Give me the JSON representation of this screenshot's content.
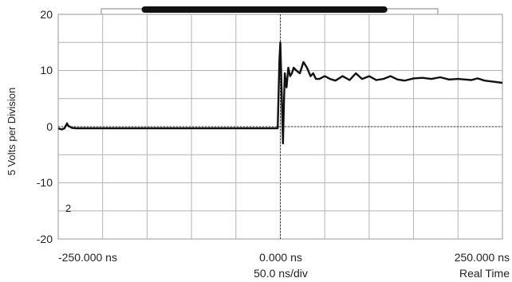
{
  "chart_data": {
    "type": "line",
    "ylabel": "5 Volts per Division",
    "x_ticks": [
      "-250.000 ns",
      "0.000 ns",
      "250.000 ns"
    ],
    "x_subtitles": {
      "center": "50.0 ns/div",
      "right": "Real Time"
    },
    "y_ticks": [
      "20",
      "10",
      "0",
      "-10",
      "-20"
    ],
    "xlim_ns": [
      -250,
      250
    ],
    "ylim_v": [
      -20,
      20
    ],
    "grid": true,
    "trigger_x_ns": 0,
    "channel_marker": "2",
    "series": [
      {
        "x_ns": [
          -250,
          -246,
          -243,
          -240,
          -239,
          -235,
          -230,
          -220,
          -150,
          -50,
          -3,
          -1,
          0,
          1.5,
          3,
          4,
          5,
          7,
          9,
          11,
          13,
          15,
          18,
          22,
          26,
          30,
          34,
          37,
          40,
          44,
          50,
          56,
          62,
          70,
          78,
          85,
          92,
          100,
          108,
          116,
          124,
          132,
          140,
          150,
          160,
          170,
          180,
          190,
          200,
          208,
          215,
          222,
          230,
          240,
          250
        ],
        "y_v": [
          -0.3,
          -0.5,
          -0.3,
          0.6,
          0.2,
          -0.2,
          -0.3,
          -0.3,
          -0.3,
          -0.3,
          -0.3,
          12,
          15,
          6,
          -3,
          4,
          9.5,
          7,
          10.5,
          9,
          9.5,
          10.5,
          10,
          9.5,
          11.5,
          10.5,
          9,
          9.5,
          8.5,
          8.5,
          9,
          8.5,
          8.2,
          9,
          8.3,
          9.5,
          8.5,
          9,
          8.3,
          8.5,
          9,
          8.4,
          8.2,
          8.6,
          8.7,
          8.5,
          8.8,
          8.4,
          8.5,
          8.4,
          8.3,
          8.6,
          8.2,
          8.0,
          7.8
        ]
      }
    ]
  },
  "overview": {
    "record_fraction": [
      0.0,
      1.0
    ],
    "visible_fraction": [
      0.12,
      0.85
    ]
  }
}
